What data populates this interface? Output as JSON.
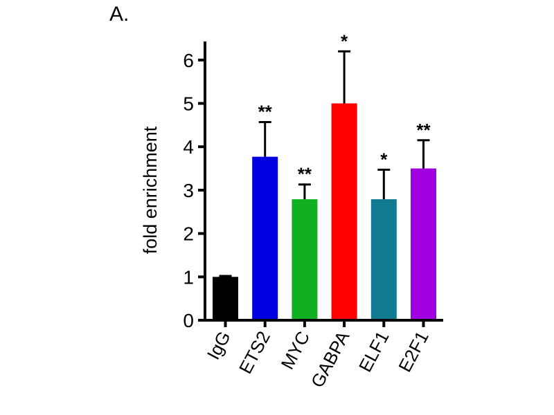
{
  "chart_data": {
    "type": "bar",
    "panel_label": "A.",
    "title": "",
    "xlabel": "",
    "ylabel": "fold enrichment",
    "ylim": [
      0,
      6.4
    ],
    "yticks": [
      "0",
      "1",
      "2",
      "3",
      "4",
      "5",
      "6"
    ],
    "categories": [
      "IgG",
      "ETS2",
      "MYC",
      "GABPA",
      "ELF1",
      "E2F1"
    ],
    "values": [
      1.0,
      3.77,
      2.79,
      5.0,
      2.79,
      3.5
    ],
    "error_upper": [
      1.02,
      4.57,
      3.13,
      6.2,
      3.47,
      4.15
    ],
    "significance": [
      "",
      "**",
      "**",
      "*",
      "*",
      "**"
    ],
    "colors": [
      "#000000",
      "#0000e0",
      "#10b020",
      "#ff0000",
      "#107a90",
      "#a000e0"
    ],
    "grid": false,
    "legend": "none"
  }
}
